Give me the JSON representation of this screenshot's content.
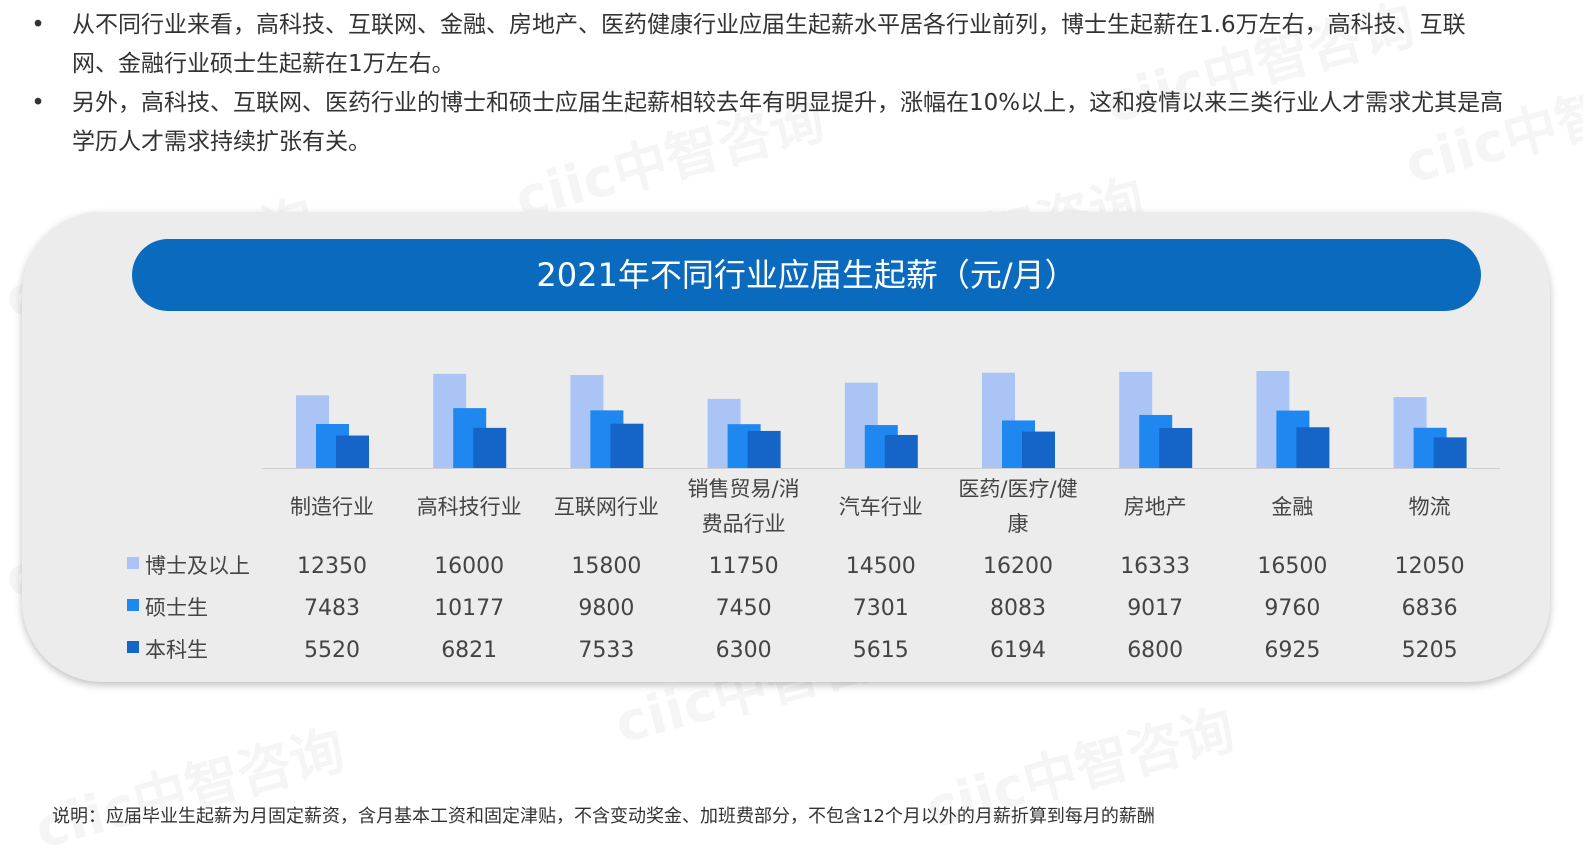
{
  "bullets": [
    "从不同行业来看，高科技、互联网、金融、房地产、医药健康行业应届生起薪水平居各行业前列，博士生起薪在1.6万左右，高科技、互联网、金融行业硕士生起薪在1万左右。",
    "另外，高科技、互联网、医药行业的博士和硕士应届生起薪相较去年有明显提升，涨幅在10%以上，这和疫情以来三类行业人才需求尤其是高学历人才需求持续扩张有关。"
  ],
  "watermark": "ciic中智咨询",
  "note": "说明：应届毕业生起薪为月固定薪资，含月基本工资和固定津贴，不含变动奖金、加班费部分，不包含12个月以外的月薪折算到每月的薪酬",
  "chart_data": {
    "type": "bar",
    "title": "2021年不同行业应届生起薪（元/月）",
    "categories": [
      "制造行业",
      "高科技行业",
      "互联网行业",
      "销售贸易/消费品行业",
      "汽车行业",
      "医药/医疗/健康",
      "房地产",
      "金融",
      "物流"
    ],
    "category_lines": [
      [
        "制造行业"
      ],
      [
        "高科技行业"
      ],
      [
        "互联网行业"
      ],
      [
        "销售贸易/消",
        "费品行业"
      ],
      [
        "汽车行业"
      ],
      [
        "医药/医疗/健",
        "康"
      ],
      [
        "房地产"
      ],
      [
        "金融"
      ],
      [
        "物流"
      ]
    ],
    "series": [
      {
        "name": "博士及以上",
        "color": "#a9c4f5",
        "values": [
          12350,
          16000,
          15800,
          11750,
          14500,
          16200,
          16333,
          16500,
          12050
        ]
      },
      {
        "name": "硕士生",
        "color": "#1e88f0",
        "values": [
          7483,
          10177,
          9800,
          7450,
          7301,
          8083,
          9017,
          9760,
          6836
        ]
      },
      {
        "name": "本科生",
        "color": "#1565c8",
        "values": [
          5520,
          6821,
          7533,
          6300,
          5615,
          6194,
          6800,
          6925,
          5205
        ]
      }
    ],
    "ylim": [
      0,
      17000
    ],
    "legend": "data table below chart"
  }
}
